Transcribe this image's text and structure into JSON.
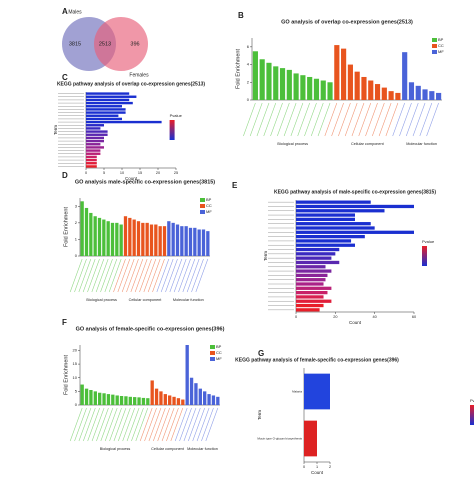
{
  "chart_data": [
    {
      "type": "venn",
      "panel": "A",
      "sets": [
        "Males",
        "Females"
      ],
      "values": [
        3815,
        2513,
        396
      ],
      "colors": [
        "#8a8ac8",
        "#e8607a"
      ]
    },
    {
      "type": "bar",
      "panel": "B",
      "title": "GO analysis of overlap co-expression genes(2513)",
      "y_label": "Fold Enrichment",
      "ylim": [
        0,
        7
      ],
      "yticks": [
        0,
        2,
        4,
        6
      ],
      "series": [
        {
          "name": "BP",
          "group_label": "Biological process",
          "color": "#4cbf3a",
          "values": [
            5.5,
            4.6,
            4.2,
            3.8,
            3.6,
            3.4,
            3.0,
            2.8,
            2.6,
            2.4,
            2.2,
            2.0
          ]
        },
        {
          "name": "CC",
          "group_label": "Cellular component",
          "color": "#e8541e",
          "values": [
            6.2,
            5.8,
            4.0,
            3.2,
            2.6,
            2.2,
            1.8,
            1.4,
            1.0,
            0.8
          ]
        },
        {
          "name": "MF",
          "group_label": "Molecular function",
          "color": "#4a63d8",
          "values": [
            5.4,
            2.0,
            1.6,
            1.2,
            1.0,
            0.8
          ]
        }
      ]
    },
    {
      "type": "barh",
      "panel": "C",
      "title": "KEGG pathway analysis of overlap co-expression genes(2513)",
      "x_label": "Count",
      "y_label": "Term",
      "legend_title": "Pvalue",
      "xlim": [
        0,
        25
      ],
      "xticks": [
        0,
        5,
        10,
        15,
        20,
        25
      ],
      "values": [
        12,
        14,
        12,
        13,
        10,
        11,
        11,
        9,
        10,
        21,
        5,
        4,
        6,
        6,
        5,
        5,
        4,
        5,
        4,
        4,
        3,
        3,
        3,
        3
      ],
      "colors": [
        "#1a2fd0",
        "#1a2fd0",
        "#1a2fd0",
        "#1a2fd0",
        "#1a2fd0",
        "#1a2fd0",
        "#1a2fd0",
        "#1a2fd0",
        "#1a2fd0",
        "#1a2fd0",
        "#2a2ac8",
        "#3a2ac0",
        "#4a28b8",
        "#5a28b0",
        "#6a26a8",
        "#7a26a0",
        "#8a2498",
        "#9a2490",
        "#aa2288",
        "#ba2278",
        "#c82268",
        "#d82050",
        "#e01e3a",
        "#e81e28"
      ]
    },
    {
      "type": "bar",
      "panel": "D",
      "title": "GO analysis male-specific co-expression genes(3815)",
      "y_label": "Fold Enrichment",
      "ylim": [
        0,
        3.5
      ],
      "yticks": [
        0,
        1,
        2,
        3
      ],
      "series": [
        {
          "name": "BP",
          "group_label": "Biological process",
          "color": "#4cbf3a",
          "values": [
            3.3,
            2.9,
            2.6,
            2.4,
            2.3,
            2.2,
            2.1,
            2.0,
            2.0,
            1.9
          ]
        },
        {
          "name": "CC",
          "group_label": "Cellular component",
          "color": "#e8541e",
          "values": [
            2.4,
            2.3,
            2.2,
            2.1,
            2.0,
            2.0,
            1.9,
            1.9,
            1.8,
            1.8
          ]
        },
        {
          "name": "MF",
          "group_label": "Molecular function",
          "color": "#4a63d8",
          "values": [
            2.1,
            2.0,
            1.9,
            1.8,
            1.8,
            1.7,
            1.7,
            1.6,
            1.6,
            1.5
          ]
        }
      ]
    },
    {
      "type": "barh",
      "panel": "E",
      "title": "KEGG pathway analysis of male-specific co-expression genes(3815)",
      "x_label": "Count",
      "y_label": "Term",
      "legend_title": "Pvalue",
      "xlim": [
        0,
        60
      ],
      "xticks": [
        0,
        20,
        40,
        60
      ],
      "values": [
        38,
        60,
        45,
        30,
        30,
        38,
        40,
        60,
        35,
        28,
        30,
        22,
        20,
        18,
        22,
        15,
        18,
        16,
        15,
        14,
        18,
        16,
        14,
        18,
        14,
        12
      ],
      "colors": [
        "#1a2fd0",
        "#1a2fd0",
        "#1a2fd0",
        "#1a2fd0",
        "#1a2fd0",
        "#1a2fd0",
        "#1a2fd0",
        "#1a2fd0",
        "#1a2fd0",
        "#1a2fd0",
        "#1a2fd0",
        "#2a2ac8",
        "#3a2ac0",
        "#4a28b8",
        "#5a28b0",
        "#6a26a8",
        "#7a26a0",
        "#8a2498",
        "#9a2490",
        "#aa2288",
        "#ba2278",
        "#c82268",
        "#d82050",
        "#e01e3a",
        "#e81e28",
        "#e81e28"
      ]
    },
    {
      "type": "bar",
      "panel": "F",
      "title": "GO analysis of female-specific co-expression genes(396)",
      "y_label": "Fold Enrichment",
      "ylim": [
        0,
        22
      ],
      "yticks": [
        0,
        5,
        10,
        15,
        20
      ],
      "series": [
        {
          "name": "BP",
          "group_label": "Biological process",
          "color": "#4cbf3a",
          "values": [
            7.5,
            6,
            5.5,
            5,
            4.5,
            4.3,
            4,
            3.8,
            3.5,
            3.3,
            3.2,
            3,
            2.9,
            2.8,
            2.6,
            2.5
          ]
        },
        {
          "name": "CC",
          "group_label": "Cellular component",
          "color": "#e8541e",
          "values": [
            9,
            6,
            5,
            4,
            3.5,
            3,
            2.5,
            2
          ]
        },
        {
          "name": "MF",
          "group_label": "Molecular function",
          "color": "#4a63d8",
          "values": [
            22,
            10,
            8,
            6,
            5,
            4,
            3.5,
            3
          ]
        }
      ]
    },
    {
      "type": "barh",
      "panel": "G",
      "title": "KEGG pathway analysis of female-specific co-expression genes(396)",
      "x_label": "Count",
      "y_label": "Term",
      "legend_title": "Pvalue",
      "xlim": [
        0,
        2
      ],
      "xticks": [
        0,
        1,
        2
      ],
      "categories": [
        "Malaria",
        "Mucin type O-glycan biosynthesis"
      ],
      "values": [
        2,
        1
      ],
      "colors": [
        "#2244dd",
        "#dd2222"
      ]
    }
  ]
}
